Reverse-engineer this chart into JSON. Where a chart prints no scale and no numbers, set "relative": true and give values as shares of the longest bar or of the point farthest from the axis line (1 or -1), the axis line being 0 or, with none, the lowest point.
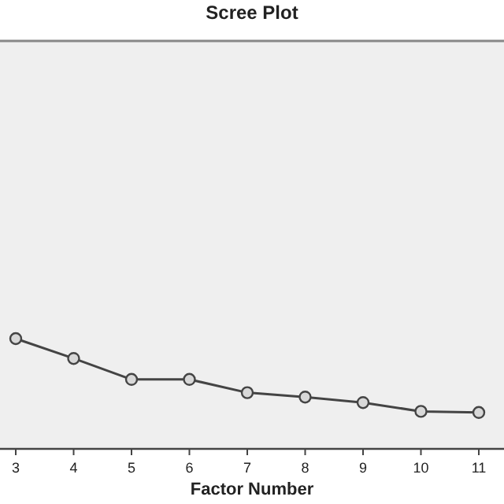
{
  "chart_data": {
    "type": "line",
    "title": "Scree Plot",
    "xlabel": "Factor Number",
    "categories": [
      "3",
      "4",
      "5",
      "6",
      "7",
      "8",
      "9",
      "10",
      "11"
    ],
    "relative": true,
    "series": [
      {
        "color": "#444444",
        "values": [
          1,
          0.82,
          0.63,
          0.63,
          0.51,
          0.47,
          0.42,
          0.34,
          0.33
        ]
      }
    ],
    "marker": "circle",
    "line_style": "solid"
  }
}
